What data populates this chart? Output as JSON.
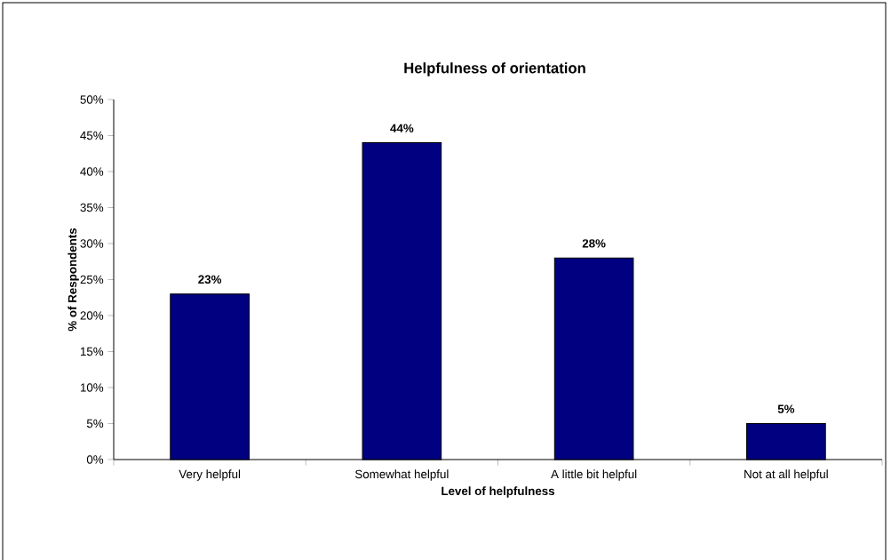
{
  "chart_data": {
    "type": "bar",
    "title": "Helpfulness of orientation",
    "xlabel": "Level of helpfulness",
    "ylabel": "% of Respondents",
    "categories": [
      "Very helpful",
      "Somewhat helpful",
      "A little bit helpful",
      "Not at all helpful"
    ],
    "values": [
      23,
      44,
      28,
      5
    ],
    "color": "#000080",
    "value_labels": [
      "23%",
      "44%",
      "28%",
      "5%"
    ],
    "ylim": [
      0,
      50
    ],
    "yticks": [
      {
        "value": 0,
        "label": "0%"
      },
      {
        "value": 5,
        "label": "5%"
      },
      {
        "value": 10,
        "label": "10%"
      },
      {
        "value": 15,
        "label": "15%"
      },
      {
        "value": 20,
        "label": "20%"
      },
      {
        "value": 25,
        "label": "25%"
      },
      {
        "value": 30,
        "label": "30%"
      },
      {
        "value": 35,
        "label": "35%"
      },
      {
        "value": 40,
        "label": "40%"
      },
      {
        "value": 45,
        "label": "45%"
      },
      {
        "value": 50,
        "label": "50%"
      }
    ]
  }
}
